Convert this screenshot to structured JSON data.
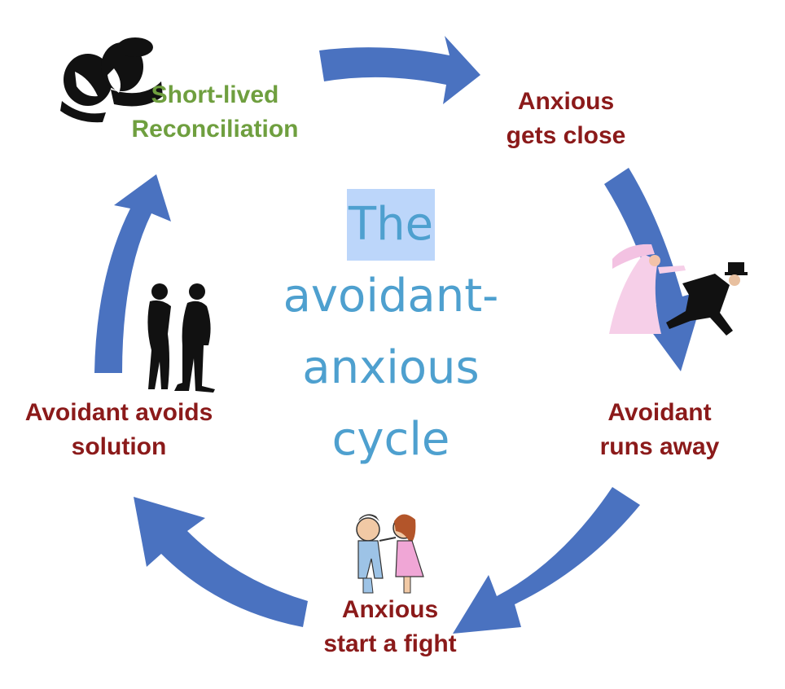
{
  "title": {
    "line1": "The",
    "line2": "avoidant-",
    "line3": "anxious",
    "line4": "cycle"
  },
  "stages": {
    "reconciliation": {
      "line1": "Short-lived",
      "line2": "Reconciliation"
    },
    "gets_close": {
      "line1": "Anxious",
      "line2": "gets close"
    },
    "runs_away": {
      "line1": "Avoidant",
      "line2": "runs away"
    },
    "fight": {
      "line1": "Anxious",
      "line2": "start a fight"
    },
    "avoids": {
      "line1": "Avoidant avoids",
      "line2": "solution"
    }
  },
  "colors": {
    "arrow": "#4a72c0",
    "stage_text": "#8b1a1a",
    "reconciliation_text": "#6f9f3f",
    "title_text": "#4ea0cf",
    "title_highlight": "#bcd6fa"
  },
  "icons": [
    "kissing-couple-icon",
    "bride-chasing-groom-icon",
    "arguing-couple-icon",
    "couple-back-to-back-icon"
  ]
}
